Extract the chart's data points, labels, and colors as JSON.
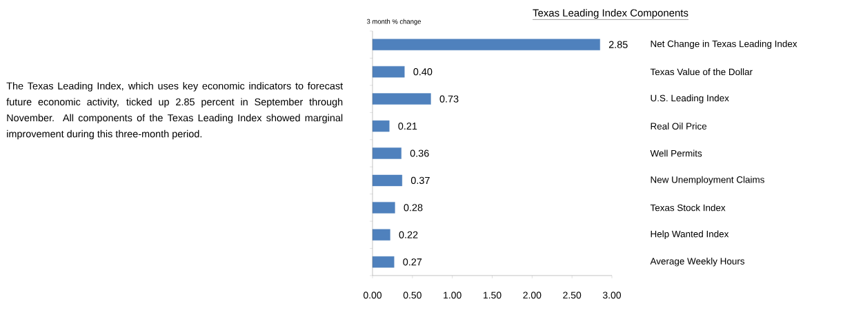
{
  "chart_data": {
    "type": "bar",
    "orientation": "horizontal",
    "title": "Texas Leading Index Components",
    "xlabel": "3 month % change",
    "categories": [
      "Net Change in Texas Leading Index",
      "Texas Value of the Dollar",
      "U.S. Leading Index",
      "Real Oil Price",
      "Well Permits",
      "New Unemployment  Claims",
      "Texas Stock Index",
      "Help Wanted Index",
      "Average Weekly Hours"
    ],
    "values": [
      2.85,
      0.4,
      0.73,
      0.21,
      0.36,
      0.37,
      0.28,
      0.22,
      0.27
    ],
    "value_labels": [
      "2.85",
      "0.40",
      "0.73",
      "0.21",
      "0.36",
      "0.37",
      "0.28",
      "0.22",
      "0.27"
    ],
    "color": "#4f81bd",
    "xlim": [
      0,
      3
    ],
    "xticks": [
      {
        "value": 0,
        "label": "0.00"
      },
      {
        "value": 0.5,
        "label": "0.50"
      },
      {
        "value": 1,
        "label": "1.00"
      },
      {
        "value": 1.5,
        "label": "1.50"
      },
      {
        "value": 2,
        "label": "2.00"
      },
      {
        "value": 2.5,
        "label": "2.50"
      },
      {
        "value": 3,
        "label": "3.00"
      }
    ],
    "annotations": [
      "The Texas Leading Index, which uses key economic indicators to forecast future economic activity, ticked up 2.85 percent in September through November. All components of the Texas Leading Index showed marginal improvement during this three-month period."
    ]
  }
}
